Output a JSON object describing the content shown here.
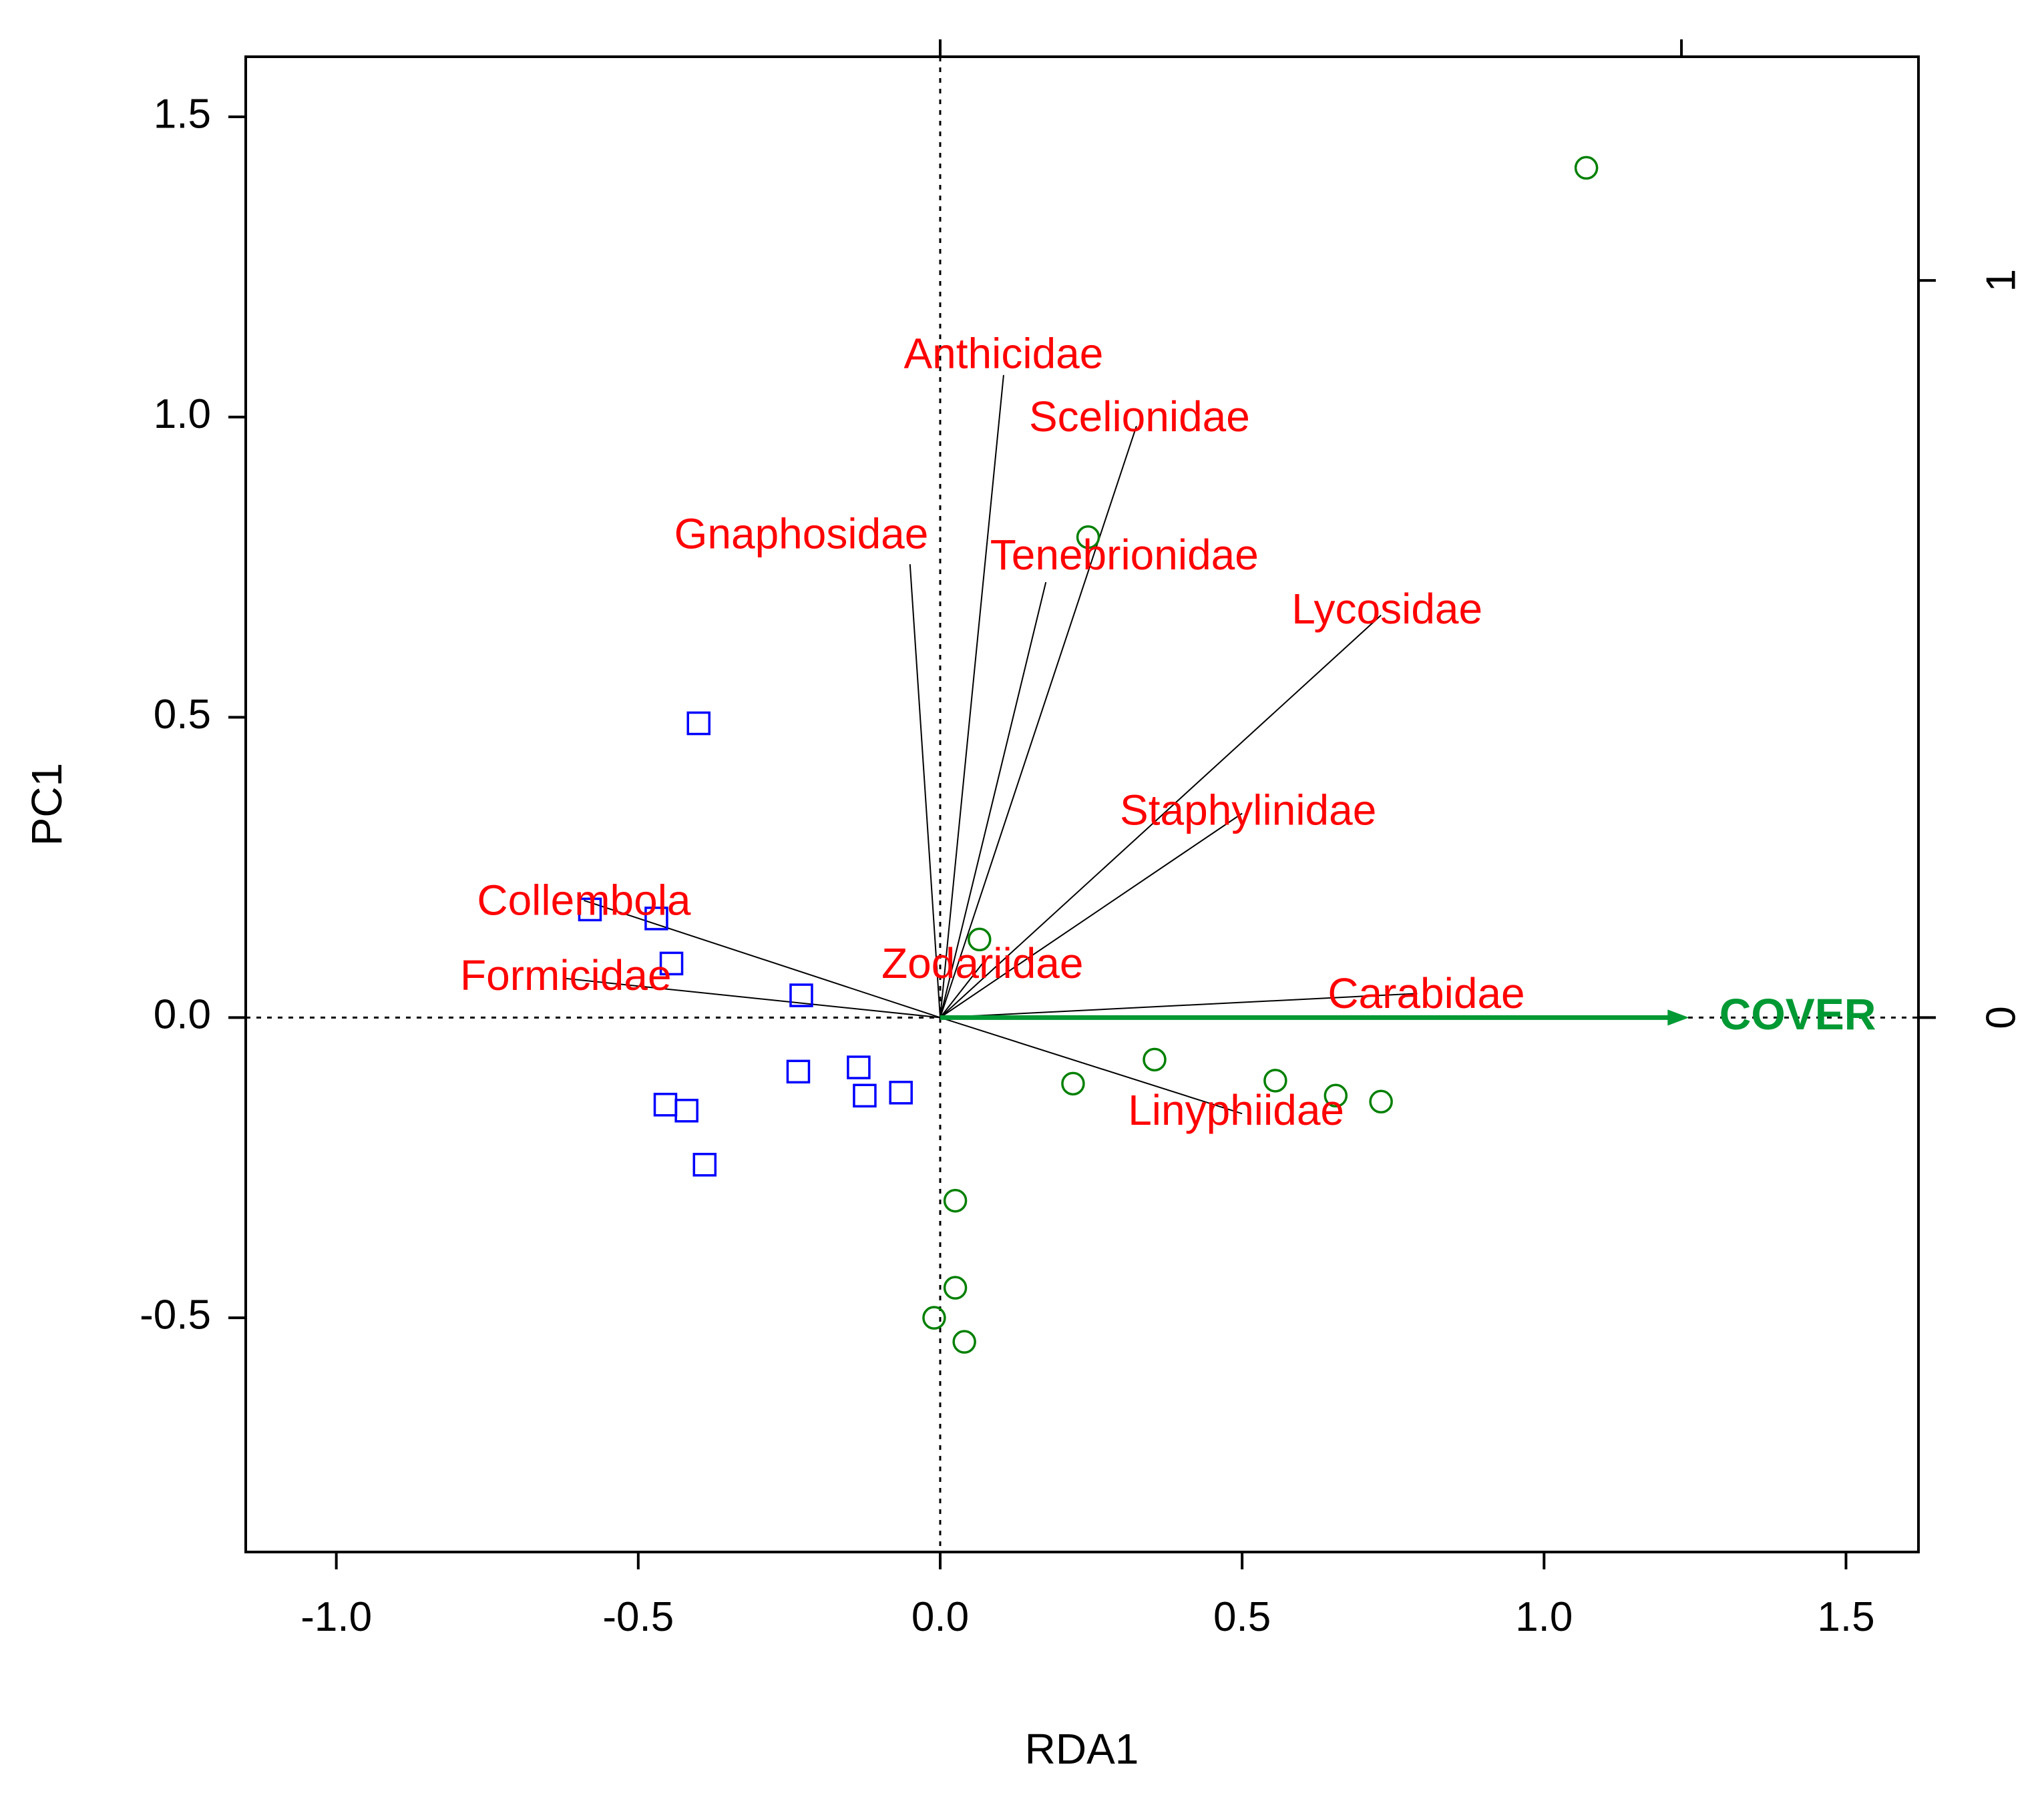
{
  "chart_data": {
    "type": "scatter",
    "subtype": "rda-biplot",
    "xlabel": "RDA1",
    "ylabel": "PC1",
    "xlim": [
      -1.15,
      1.62
    ],
    "ylim": [
      -0.89,
      1.6
    ],
    "x_ticks": [
      "-1.0",
      "-0.5",
      "0.0",
      "0.5",
      "1.0",
      "1.5"
    ],
    "x_tick_values": [
      -1.0,
      -0.5,
      0.0,
      0.5,
      1.0,
      1.5
    ],
    "y_ticks": [
      "-0.5",
      "0.0",
      "0.5",
      "1.0",
      "1.5"
    ],
    "y_tick_values": [
      -0.5,
      0.0,
      0.5,
      1.0,
      1.5
    ],
    "right_ticks": [
      "0",
      "1"
    ],
    "right_tick_values": [
      0,
      1
    ],
    "right_axis_scale": 1.2275,
    "top_ticks": [
      0,
      1
    ],
    "top_axis_scale": 1.2275,
    "reference_lines": {
      "x": 0,
      "y": 0,
      "style": "dotted"
    },
    "colors": {
      "species": "#ff0000",
      "group1": "#0000ff",
      "group2": "#008000",
      "env": "#009933",
      "line": "#000000"
    },
    "sites_group1_marker": "square",
    "sites_group1": [
      [
        -0.4,
        0.49
      ],
      [
        -0.58,
        0.18
      ],
      [
        -0.47,
        0.165
      ],
      [
        -0.445,
        0.09
      ],
      [
        -0.23,
        0.037
      ],
      [
        -0.235,
        -0.09
      ],
      [
        -0.135,
        -0.083
      ],
      [
        -0.125,
        -0.13
      ],
      [
        -0.065,
        -0.125
      ],
      [
        -0.455,
        -0.145
      ],
      [
        -0.42,
        -0.155
      ],
      [
        -0.39,
        -0.245
      ]
    ],
    "sites_group2_marker": "circle",
    "sites_group2": [
      [
        1.07,
        1.415
      ],
      [
        0.245,
        0.8
      ],
      [
        0.065,
        0.13
      ],
      [
        0.355,
        -0.07
      ],
      [
        0.22,
        -0.11
      ],
      [
        0.555,
        -0.105
      ],
      [
        0.655,
        -0.13
      ],
      [
        0.73,
        -0.14
      ],
      [
        0.025,
        -0.305
      ],
      [
        0.025,
        -0.45
      ],
      [
        -0.01,
        -0.5
      ],
      [
        0.04,
        -0.54
      ]
    ],
    "species": [
      {
        "name": "Anthicidae",
        "x": 0.105,
        "y": 1.07,
        "lx": 0.105,
        "ly": 1.1
      },
      {
        "name": "Scelionidae",
        "x": 0.325,
        "y": 0.985,
        "lx": 0.33,
        "ly": 0.995
      },
      {
        "name": "Gnaphosidae",
        "x": -0.05,
        "y": 0.755,
        "lx": -0.23,
        "ly": 0.8
      },
      {
        "name": "Tenebrionidae",
        "x": 0.175,
        "y": 0.725,
        "lx": 0.305,
        "ly": 0.765
      },
      {
        "name": "Lycosidae",
        "x": 0.73,
        "y": 0.67,
        "lx": 0.74,
        "ly": 0.675
      },
      {
        "name": "Staphylinidae",
        "x": 0.5,
        "y": 0.34,
        "lx": 0.51,
        "ly": 0.34
      },
      {
        "name": "Collembola",
        "x": -0.59,
        "y": 0.195,
        "lx": -0.59,
        "ly": 0.19
      },
      {
        "name": "Formicidae",
        "x": -0.62,
        "y": 0.065,
        "lx": -0.62,
        "ly": 0.065
      },
      {
        "name": "Zodariidae",
        "x": 0.07,
        "y": 0.09,
        "lx": 0.07,
        "ly": 0.085
      },
      {
        "name": "Carabidae",
        "x": 0.79,
        "y": 0.04,
        "lx": 0.805,
        "ly": 0.035
      },
      {
        "name": "Linyphiidae",
        "x": 0.5,
        "y": -0.16,
        "lx": 0.49,
        "ly": -0.16
      }
    ],
    "env_vectors": [
      {
        "name": "COVER",
        "x": 1.24,
        "y": 0.0,
        "lx": 1.42,
        "ly": 0.0
      }
    ]
  }
}
